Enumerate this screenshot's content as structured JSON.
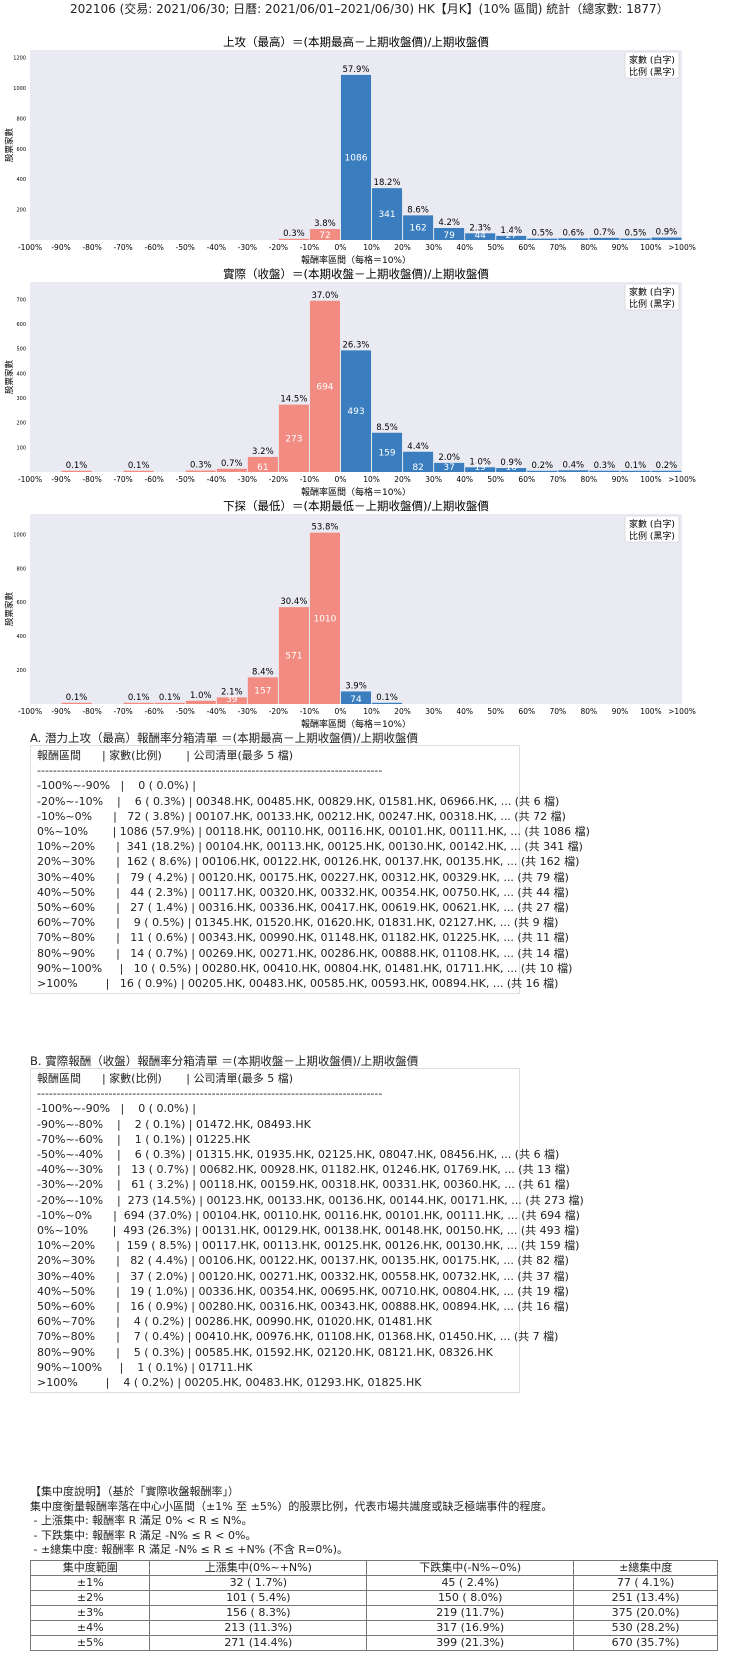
{
  "page_title": "202106 (交易: 2021/06/30; 日曆: 2021/06/01–2021/06/30) HK【月K】(10% 區間) 統計（總家數: 1877）",
  "legend": {
    "line1": "家數 (白字)",
    "line2": "比例 (黑字)"
  },
  "colors": {
    "negative": "#f28b82",
    "positive": "#3a7ebf",
    "plot_bg": "#eaeaf2"
  },
  "chart_data": [
    {
      "type": "bar",
      "title": "上攻（最高）＝(本期最高－上期收盤價)/上期收盤價",
      "xlabel": "報酬率區間（每格＝10%）",
      "ylabel": "股票家數",
      "ylim": [
        0,
        1250
      ],
      "yticks": [
        200,
        400,
        600,
        800,
        1000,
        1200
      ],
      "xticks": [
        "-100%",
        "-90%",
        "-80%",
        "-70%",
        "-60%",
        "-50%",
        "-40%",
        "-30%",
        "-20%",
        "-10%",
        "0%",
        "10%",
        "20%",
        "30%",
        "40%",
        "50%",
        "60%",
        "70%",
        "80%",
        "90%",
        "100%",
        ">100%"
      ],
      "values": [
        0,
        0,
        0,
        0,
        0,
        0,
        0,
        0,
        6,
        72,
        1086,
        341,
        162,
        79,
        44,
        27,
        9,
        11,
        14,
        10,
        16
      ],
      "percent_labels": [
        "",
        "",
        "",
        "",
        "",
        "",
        "",
        "",
        "0.3%",
        "3.8%",
        "57.9%",
        "18.2%",
        "8.6%",
        "4.2%",
        "2.3%",
        "1.4%",
        "0.5%",
        "0.6%",
        "0.7%",
        "0.5%",
        "0.9%"
      ],
      "count_labels": [
        "",
        "",
        "",
        "",
        "",
        "",
        "",
        "",
        "",
        "72",
        "1086",
        "341",
        "162",
        "79",
        "44",
        "27",
        "",
        "",
        "",
        "",
        ""
      ]
    },
    {
      "type": "bar",
      "title": "實際（收盤）＝(本期收盤－上期收盤價)/上期收盤價",
      "xlabel": "報酬率區間（每格＝10%）",
      "ylabel": "股票家數",
      "ylim": [
        0,
        770
      ],
      "yticks": [
        100,
        200,
        300,
        400,
        500,
        600,
        700
      ],
      "xticks": [
        "-100%",
        "-90%",
        "-80%",
        "-70%",
        "-60%",
        "-50%",
        "-40%",
        "-30%",
        "-20%",
        "-10%",
        "0%",
        "10%",
        "20%",
        "30%",
        "40%",
        "50%",
        "60%",
        "70%",
        "80%",
        "90%",
        "100%",
        ">100%"
      ],
      "values": [
        0,
        2,
        0,
        1,
        0,
        6,
        13,
        61,
        273,
        694,
        493,
        159,
        82,
        37,
        19,
        16,
        4,
        7,
        5,
        1,
        4
      ],
      "percent_labels": [
        "",
        "0.1%",
        "",
        "0.1%",
        "",
        "0.3%",
        "0.7%",
        "3.2%",
        "14.5%",
        "37.0%",
        "26.3%",
        "8.5%",
        "4.4%",
        "2.0%",
        "1.0%",
        "0.9%",
        "0.2%",
        "0.4%",
        "0.3%",
        "0.1%",
        "0.2%"
      ],
      "count_labels": [
        "",
        "",
        "",
        "",
        "",
        "",
        "",
        "61",
        "273",
        "694",
        "493",
        "159",
        "82",
        "37",
        "19",
        "16",
        "",
        "",
        "",
        "",
        ""
      ]
    },
    {
      "type": "bar",
      "title": "下探（最低）＝(本期最低－上期收盤價)/上期收盤價",
      "xlabel": "報酬率區間（每格＝10%）",
      "ylabel": "股票家數",
      "ylim": [
        0,
        1120
      ],
      "yticks": [
        200,
        400,
        600,
        800,
        1000
      ],
      "xticks": [
        "-100%",
        "-90%",
        "-80%",
        "-70%",
        "-60%",
        "-50%",
        "-40%",
        "-30%",
        "-20%",
        "-10%",
        "0%",
        "10%",
        "20%",
        "30%",
        "40%",
        "50%",
        "60%",
        "70%",
        "80%",
        "90%",
        "100%",
        ">100%"
      ],
      "values": [
        0,
        1,
        0,
        1,
        1,
        19,
        39,
        157,
        571,
        1010,
        74,
        1,
        0,
        0,
        0,
        0,
        0,
        0,
        0,
        0,
        0
      ],
      "percent_labels": [
        "",
        "0.1%",
        "",
        "0.1%",
        "0.1%",
        "1.0%",
        "2.1%",
        "8.4%",
        "30.4%",
        "53.8%",
        "3.9%",
        "0.1%",
        "",
        "",
        "",
        "",
        "",
        "",
        "",
        "",
        ""
      ],
      "count_labels": [
        "",
        "",
        "",
        "",
        "",
        "",
        "39",
        "157",
        "571",
        "1010",
        "74",
        "",
        "",
        "",
        "",
        "",
        "",
        "",
        "",
        "",
        ""
      ]
    }
  ],
  "section_a": {
    "title": "A. 潛力上攻（最高）報酬率分箱清單 ＝(本期最高－上期收盤價)/上期收盤價",
    "header": "報酬區間      | 家數(比例)       | 公司清單(最多 5 檔)",
    "divider": "---------------------------------------------------------------------------------------",
    "rows": [
      "-100%~-90%   |    0 ( 0.0%) |",
      "-20%~-10%    |    6 ( 0.3%) | 00348.HK, 00485.HK, 00829.HK, 01581.HK, 06966.HK, ... (共 6 檔)",
      "-10%~0%      |   72 ( 3.8%) | 00107.HK, 00133.HK, 00212.HK, 00247.HK, 00318.HK, ... (共 72 檔)",
      "0%~10%       | 1086 (57.9%) | 00118.HK, 00110.HK, 00116.HK, 00101.HK, 00111.HK, ... (共 1086 檔)",
      "10%~20%      |  341 (18.2%) | 00104.HK, 00113.HK, 00125.HK, 00130.HK, 00142.HK, ... (共 341 檔)",
      "20%~30%      |  162 ( 8.6%) | 00106.HK, 00122.HK, 00126.HK, 00137.HK, 00135.HK, ... (共 162 檔)",
      "30%~40%      |   79 ( 4.2%) | 00120.HK, 00175.HK, 00227.HK, 00312.HK, 00329.HK, ... (共 79 檔)",
      "40%~50%      |   44 ( 2.3%) | 00117.HK, 00320.HK, 00332.HK, 00354.HK, 00750.HK, ... (共 44 檔)",
      "50%~60%      |   27 ( 1.4%) | 00316.HK, 00336.HK, 00417.HK, 00619.HK, 00621.HK, ... (共 27 檔)",
      "60%~70%      |    9 ( 0.5%) | 01345.HK, 01520.HK, 01620.HK, 01831.HK, 02127.HK, ... (共 9 檔)",
      "70%~80%      |   11 ( 0.6%) | 00343.HK, 00990.HK, 01148.HK, 01182.HK, 01225.HK, ... (共 11 檔)",
      "80%~90%      |   14 ( 0.7%) | 00269.HK, 00271.HK, 00286.HK, 00888.HK, 01108.HK, ... (共 14 檔)",
      "90%~100%     |   10 ( 0.5%) | 00280.HK, 00410.HK, 00804.HK, 01481.HK, 01711.HK, ... (共 10 檔)",
      ">100%        |   16 ( 0.9%) | 00205.HK, 00483.HK, 00585.HK, 00593.HK, 00894.HK, ... (共 16 檔)"
    ]
  },
  "section_b": {
    "title": "B. 實際報酬（收盤）報酬率分箱清單 ＝(本期收盤－上期收盤價)/上期收盤價",
    "header": "報酬區間      | 家數(比例)       | 公司清單(最多 5 檔)",
    "divider": "---------------------------------------------------------------------------------------",
    "rows": [
      "-100%~-90%   |    0 ( 0.0%) |",
      "-90%~-80%    |    2 ( 0.1%) | 01472.HK, 08493.HK",
      "-70%~-60%    |    1 ( 0.1%) | 01225.HK",
      "-50%~-40%    |    6 ( 0.3%) | 01315.HK, 01935.HK, 02125.HK, 08047.HK, 08456.HK, ... (共 6 檔)",
      "-40%~-30%    |   13 ( 0.7%) | 00682.HK, 00928.HK, 01182.HK, 01246.HK, 01769.HK, ... (共 13 檔)",
      "-30%~-20%    |   61 ( 3.2%) | 00118.HK, 00159.HK, 00318.HK, 00331.HK, 00360.HK, ... (共 61 檔)",
      "-20%~-10%    |  273 (14.5%) | 00123.HK, 00133.HK, 00136.HK, 00144.HK, 00171.HK, ... (共 273 檔)",
      "-10%~0%      |  694 (37.0%) | 00104.HK, 00110.HK, 00116.HK, 00101.HK, 00111.HK, ... (共 694 檔)",
      "0%~10%       |  493 (26.3%) | 00131.HK, 00129.HK, 00138.HK, 00148.HK, 00150.HK, ... (共 493 檔)",
      "10%~20%      |  159 ( 8.5%) | 00117.HK, 00113.HK, 00125.HK, 00126.HK, 00130.HK, ... (共 159 檔)",
      "20%~30%      |   82 ( 4.4%) | 00106.HK, 00122.HK, 00137.HK, 00135.HK, 00175.HK, ... (共 82 檔)",
      "30%~40%      |   37 ( 2.0%) | 00120.HK, 00271.HK, 00332.HK, 00558.HK, 00732.HK, ... (共 37 檔)",
      "40%~50%      |   19 ( 1.0%) | 00336.HK, 00354.HK, 00695.HK, 00710.HK, 00804.HK, ... (共 19 檔)",
      "50%~60%      |   16 ( 0.9%) | 00280.HK, 00316.HK, 00343.HK, 00888.HK, 00894.HK, ... (共 16 檔)",
      "60%~70%      |    4 ( 0.2%) | 00286.HK, 00990.HK, 01020.HK, 01481.HK",
      "70%~80%      |    7 ( 0.4%) | 00410.HK, 00976.HK, 01108.HK, 01368.HK, 01450.HK, ... (共 7 檔)",
      "80%~90%      |    5 ( 0.3%) | 00585.HK, 01592.HK, 02120.HK, 08121.HK, 08326.HK",
      "90%~100%     |    1 ( 0.1%) | 01711.HK",
      ">100%        |    4 ( 0.2%) | 00205.HK, 00483.HK, 01293.HK, 01825.HK"
    ]
  },
  "concentration": {
    "title": "【集中度說明】（基於「實際收盤報酬率」）",
    "desc": "集中度衡量報酬率落在中心小區間（±1% 至 ±5%）的股票比例，代表市場共識度或缺乏極端事件的程度。",
    "bullets": [
      " - 上漲集中: 報酬率 R 滿足 0% < R ≤ N%。",
      " - 下跌集中: 報酬率 R 滿足 -N% ≤ R < 0%。",
      " - ±總集中度: 報酬率 R 滿足 -N% ≤ R ≤ +N% (不含 R=0%)。"
    ],
    "headers": [
      "集中度範圍",
      "上漲集中(0%~+N%)",
      "下跌集中(-N%~0%)",
      "±總集中度"
    ],
    "rows": [
      [
        "±1%",
        "32 ( 1.7%)",
        "45 ( 2.4%)",
        "77 ( 4.1%)"
      ],
      [
        "±2%",
        "101 ( 5.4%)",
        "150 ( 8.0%)",
        "251 (13.4%)"
      ],
      [
        "±3%",
        "156 ( 8.3%)",
        "219 (11.7%)",
        "375 (20.0%)"
      ],
      [
        "±4%",
        "213 (11.3%)",
        "317 (16.9%)",
        "530 (28.2%)"
      ],
      [
        "±5%",
        "271 (14.4%)",
        "399 (21.3%)",
        "670 (35.7%)"
      ]
    ]
  }
}
